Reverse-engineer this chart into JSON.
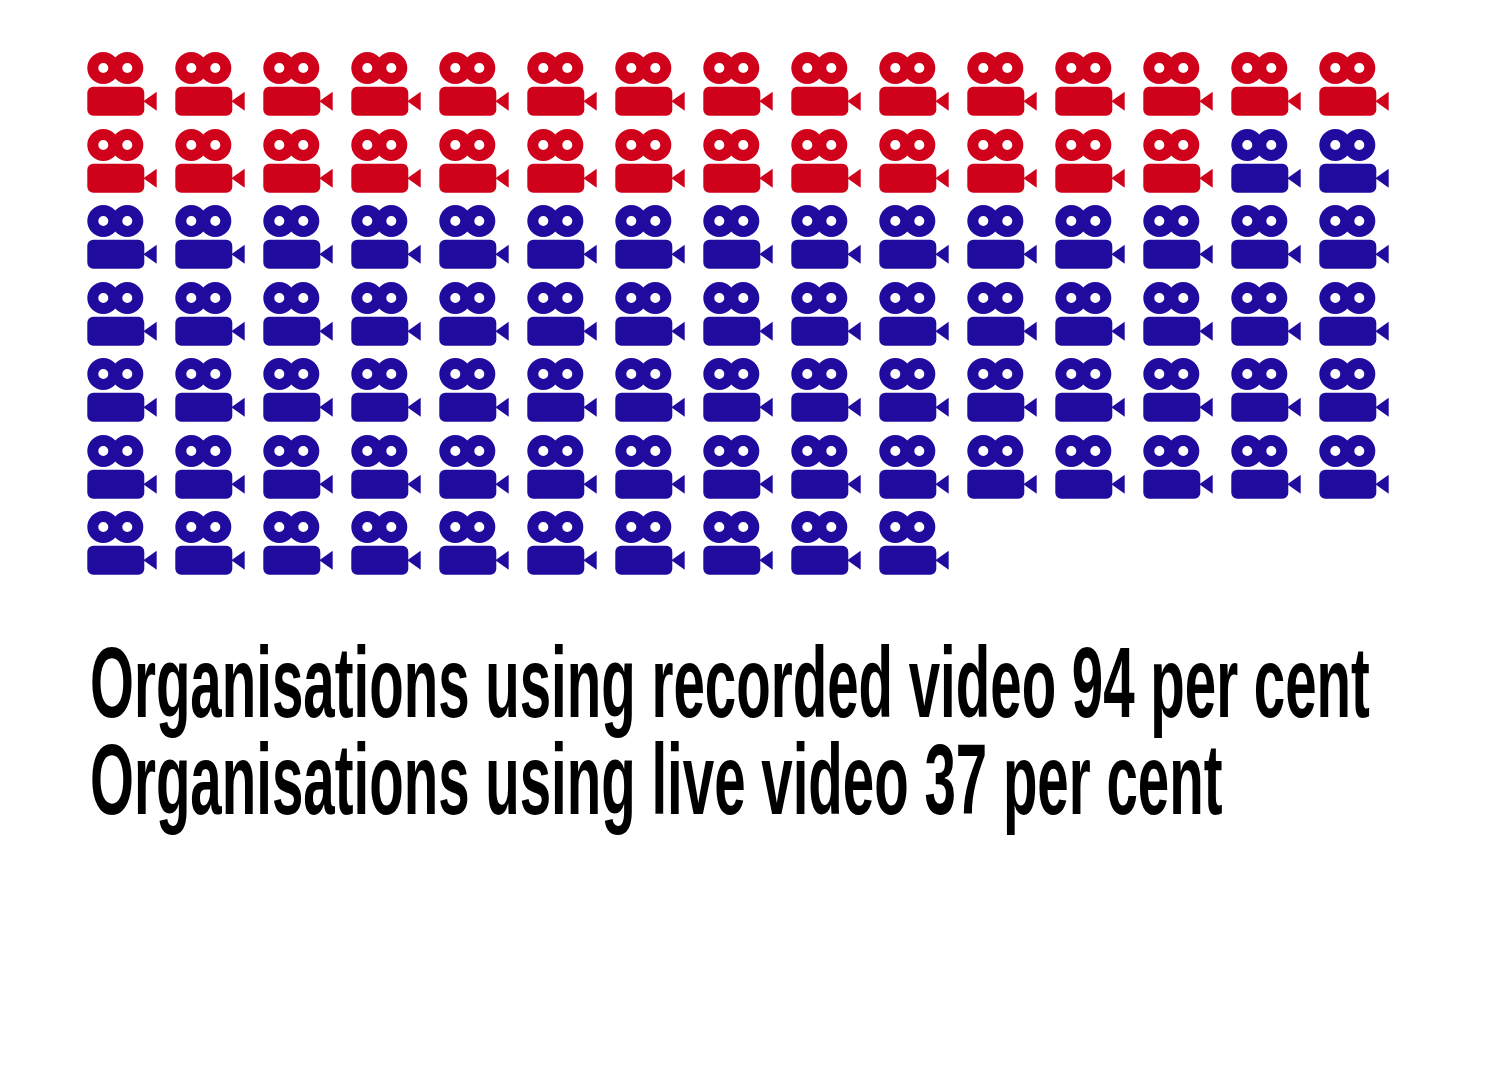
{
  "chart_data": {
    "type": "other",
    "categories": [
      "Organisations using recorded video",
      "Organisations using live video"
    ],
    "values": [
      94,
      37
    ],
    "value_labels": [
      "94 per cent",
      "37 per cent"
    ]
  }
}
